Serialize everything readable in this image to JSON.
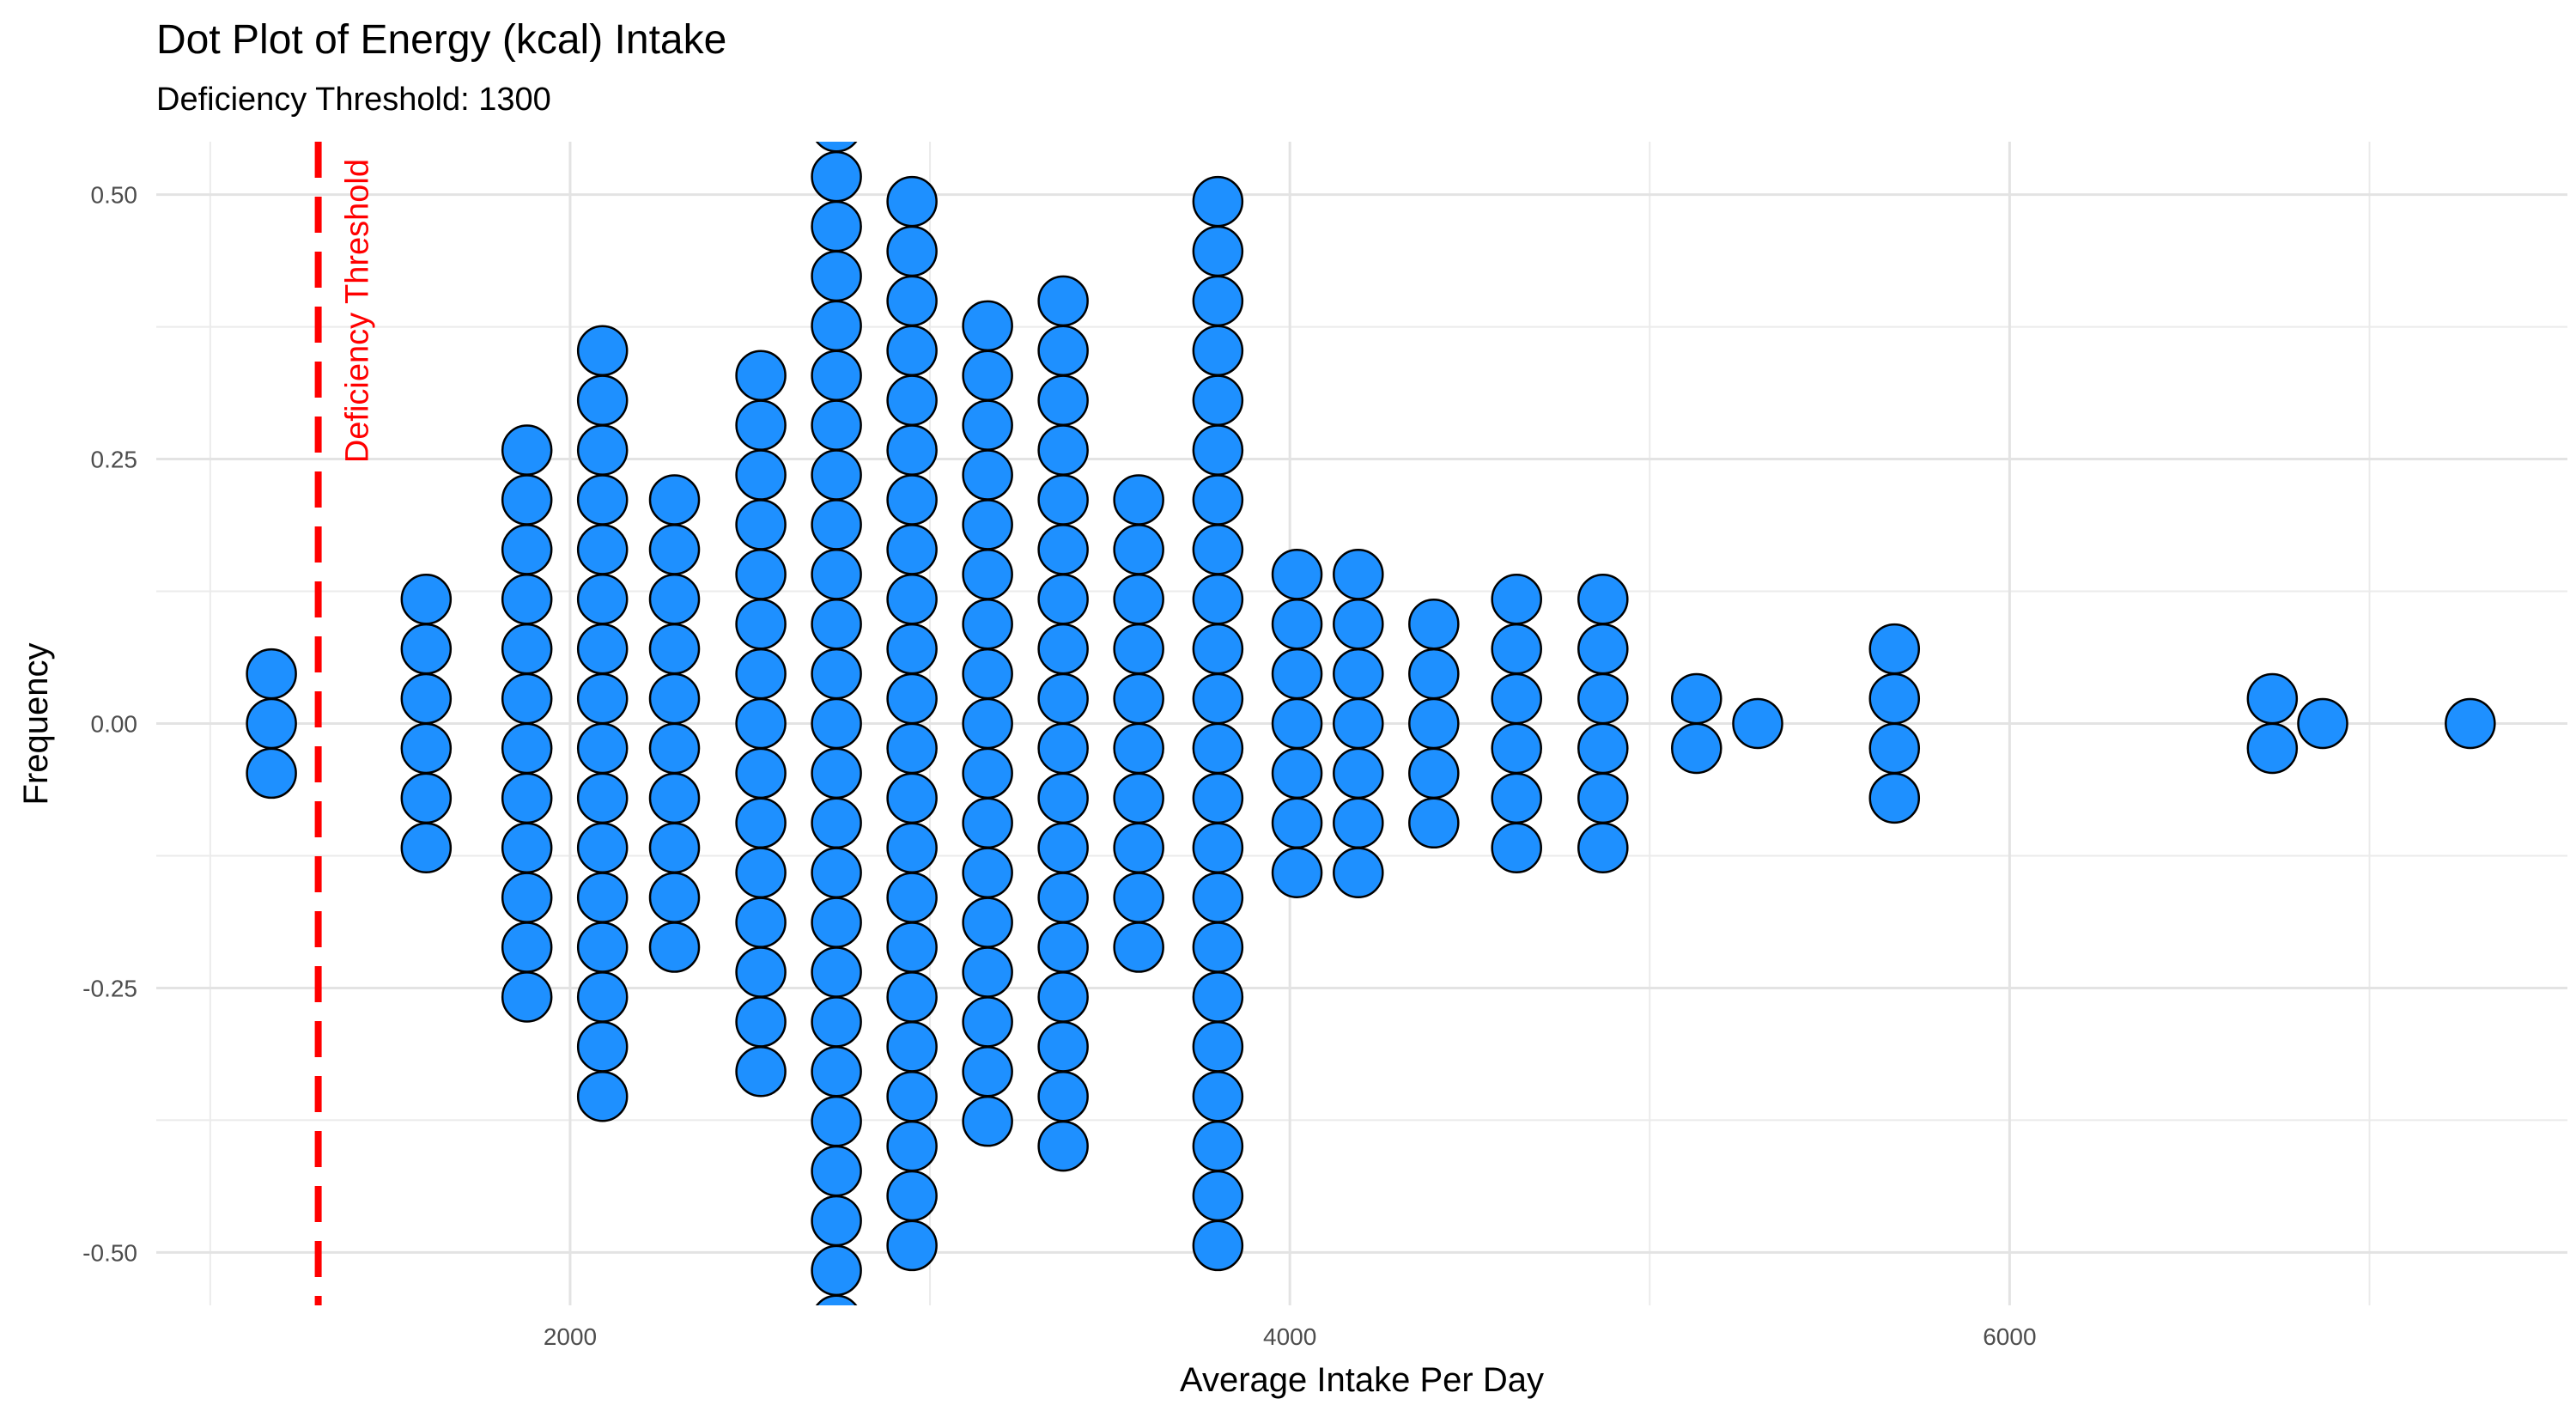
{
  "chart_data": {
    "type": "scatter",
    "subtype": "centered dot plot",
    "title": "Dot Plot of Energy (kcal) Intake",
    "subtitle": "Deficiency Threshold: 1300",
    "xlabel": "Average Intake Per Day",
    "ylabel": "Frequency",
    "xlim": [
      850,
      7550
    ],
    "ylim": [
      -0.55,
      0.55
    ],
    "x_ticks": [
      2000,
      4000,
      6000
    ],
    "x_tick_labels": [
      "2000",
      "4000",
      "6000"
    ],
    "y_ticks": [
      -0.5,
      -0.25,
      0.0,
      0.25,
      0.5
    ],
    "y_tick_labels": [
      "-0.50",
      "-0.25",
      "0.00",
      "0.25",
      "0.50"
    ],
    "grid": true,
    "dot_color": "#1E90FF",
    "dot_outline": "#000000",
    "dot_step": 0.047,
    "stacks": [
      {
        "x": 1170,
        "count": 3
      },
      {
        "x": 1600,
        "count": 6
      },
      {
        "x": 1880,
        "count": 12
      },
      {
        "x": 2090,
        "count": 16
      },
      {
        "x": 2290,
        "count": 10
      },
      {
        "x": 2530,
        "count": 15
      },
      {
        "x": 2740,
        "count": 25
      },
      {
        "x": 2950,
        "count": 22
      },
      {
        "x": 3160,
        "count": 17
      },
      {
        "x": 3370,
        "count": 18
      },
      {
        "x": 3580,
        "count": 10
      },
      {
        "x": 3800,
        "count": 22
      },
      {
        "x": 4020,
        "count": 7
      },
      {
        "x": 4190,
        "count": 7
      },
      {
        "x": 4400,
        "count": 5
      },
      {
        "x": 4630,
        "count": 6
      },
      {
        "x": 4870,
        "count": 6
      },
      {
        "x": 5130,
        "count": 2
      },
      {
        "x": 5300,
        "count": 1
      },
      {
        "x": 5680,
        "count": 4
      },
      {
        "x": 6730,
        "count": 2
      },
      {
        "x": 6870,
        "count": 1
      },
      {
        "x": 7280,
        "count": 1
      }
    ],
    "threshold": {
      "value": 1300,
      "label": "Deficiency Threshold",
      "color": "#FF0000",
      "style": "dashed"
    }
  }
}
